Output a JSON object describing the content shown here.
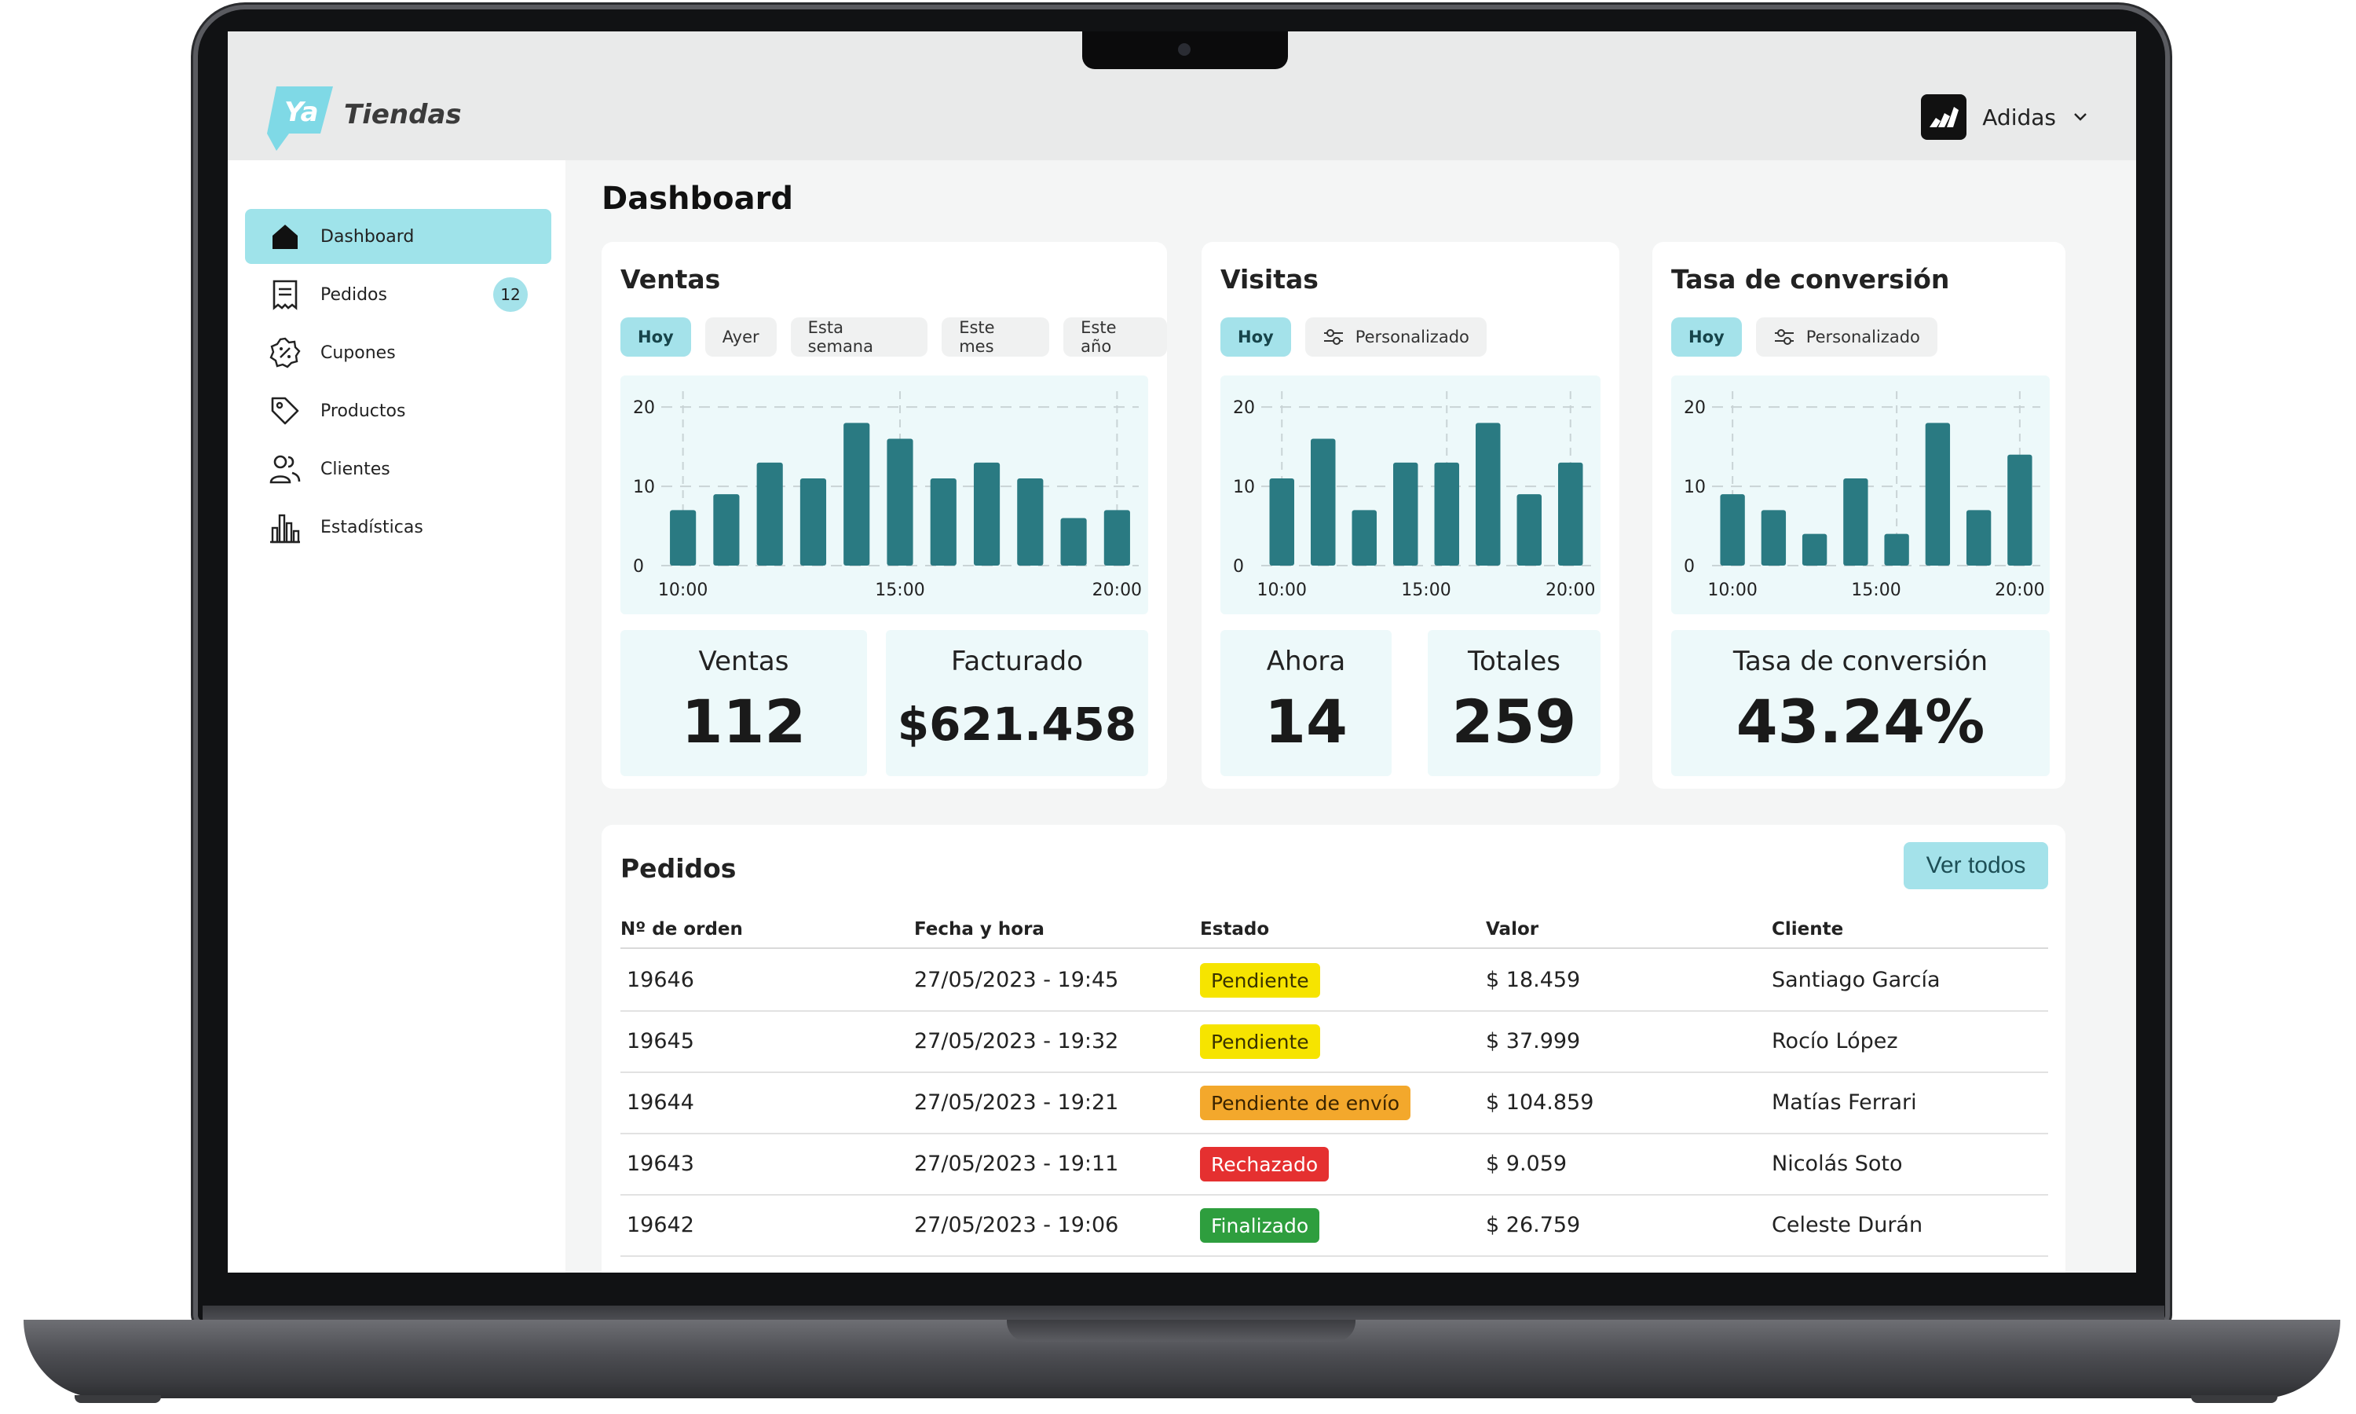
{
  "app": {
    "brand": "Tiendas",
    "logo_text": "Ya"
  },
  "store": {
    "name": "Adidas"
  },
  "page_title": "Dashboard",
  "sidebar": {
    "items": [
      {
        "label": "Dashboard",
        "icon": "home-icon",
        "active": true
      },
      {
        "label": "Pedidos",
        "icon": "receipt-icon",
        "badge": "12"
      },
      {
        "label": "Cupones",
        "icon": "coupon-icon"
      },
      {
        "label": "Productos",
        "icon": "tag-icon"
      },
      {
        "label": "Clientes",
        "icon": "users-icon"
      },
      {
        "label": "Estadísticas",
        "icon": "bar-chart-icon"
      }
    ]
  },
  "cards": {
    "ventas": {
      "title": "Ventas",
      "filters": [
        "Hoy",
        "Ayer",
        "Esta semana",
        "Este mes",
        "Este año"
      ],
      "kpis": [
        {
          "label": "Ventas",
          "value": "112"
        },
        {
          "label": "Facturado",
          "value": "$621.458"
        }
      ]
    },
    "visitas": {
      "title": "Visitas",
      "filters": [
        "Hoy",
        "Personalizado"
      ],
      "kpis": [
        {
          "label": "Ahora",
          "value": "14"
        },
        {
          "label": "Totales",
          "value": "259"
        }
      ]
    },
    "conversion": {
      "title": "Tasa de conversión",
      "filters": [
        "Hoy",
        "Personalizado"
      ],
      "kpis": [
        {
          "label": "Tasa de conversión",
          "value": "43.24%"
        }
      ]
    }
  },
  "chart_data": [
    {
      "type": "bar",
      "title": "Ventas",
      "yticks": [
        "0",
        "10",
        "20"
      ],
      "xticks": [
        "10:00",
        "15:00",
        "20:00"
      ],
      "ylim": [
        0,
        22
      ],
      "values": [
        7,
        9,
        13,
        11,
        18,
        16,
        11,
        13,
        11,
        6,
        7
      ],
      "color": "#2a7a82"
    },
    {
      "type": "bar",
      "title": "Visitas",
      "yticks": [
        "0",
        "10",
        "20"
      ],
      "xticks": [
        "10:00",
        "15:00",
        "20:00"
      ],
      "ylim": [
        0,
        22
      ],
      "values": [
        11,
        16,
        7,
        13,
        13,
        18,
        9,
        13
      ],
      "color": "#2a7a82"
    },
    {
      "type": "bar",
      "title": "Tasa de conversión",
      "yticks": [
        "0",
        "10",
        "20"
      ],
      "xticks": [
        "10:00",
        "15:00",
        "20:00"
      ],
      "ylim": [
        0,
        22
      ],
      "values": [
        9,
        7,
        4,
        11,
        4,
        18,
        7,
        14
      ],
      "color": "#2a7a82"
    }
  ],
  "orders": {
    "title": "Pedidos",
    "view_all": "Ver todos",
    "columns": [
      "Nº de orden",
      "Fecha y hora",
      "Estado",
      "Valor",
      "Cliente"
    ],
    "rows": [
      {
        "id": "19646",
        "date": "27/05/2023 - 19:45",
        "status": "Pendiente",
        "status_color": "#f6e400",
        "status_text": "#3a3300",
        "value": "$ 18.459",
        "client": "Santiago García"
      },
      {
        "id": "19645",
        "date": "27/05/2023 - 19:32",
        "status": "Pendiente",
        "status_color": "#f6e400",
        "status_text": "#3a3300",
        "value": "$ 37.999",
        "client": "Rocío López"
      },
      {
        "id": "19644",
        "date": "27/05/2023 - 19:21",
        "status": "Pendiente de envío",
        "status_color": "#f3a82c",
        "status_text": "#3a2400",
        "value": "$ 104.859",
        "client": "Matías Ferrari"
      },
      {
        "id": "19643",
        "date": "27/05/2023 - 19:11",
        "status": "Rechazado",
        "status_color": "#e53030",
        "status_text": "#ffffff",
        "value": "$ 9.059",
        "client": "Nicolás Soto"
      },
      {
        "id": "19642",
        "date": "27/05/2023 - 19:06",
        "status": "Finalizado",
        "status_color": "#2e9e3e",
        "status_text": "#ffffff",
        "value": "$ 26.759",
        "client": "Celeste Durán"
      }
    ]
  },
  "colors": {
    "accent": "#a4e2ea",
    "bar": "#2a7a82",
    "chart_bg": "#edf9fa"
  }
}
